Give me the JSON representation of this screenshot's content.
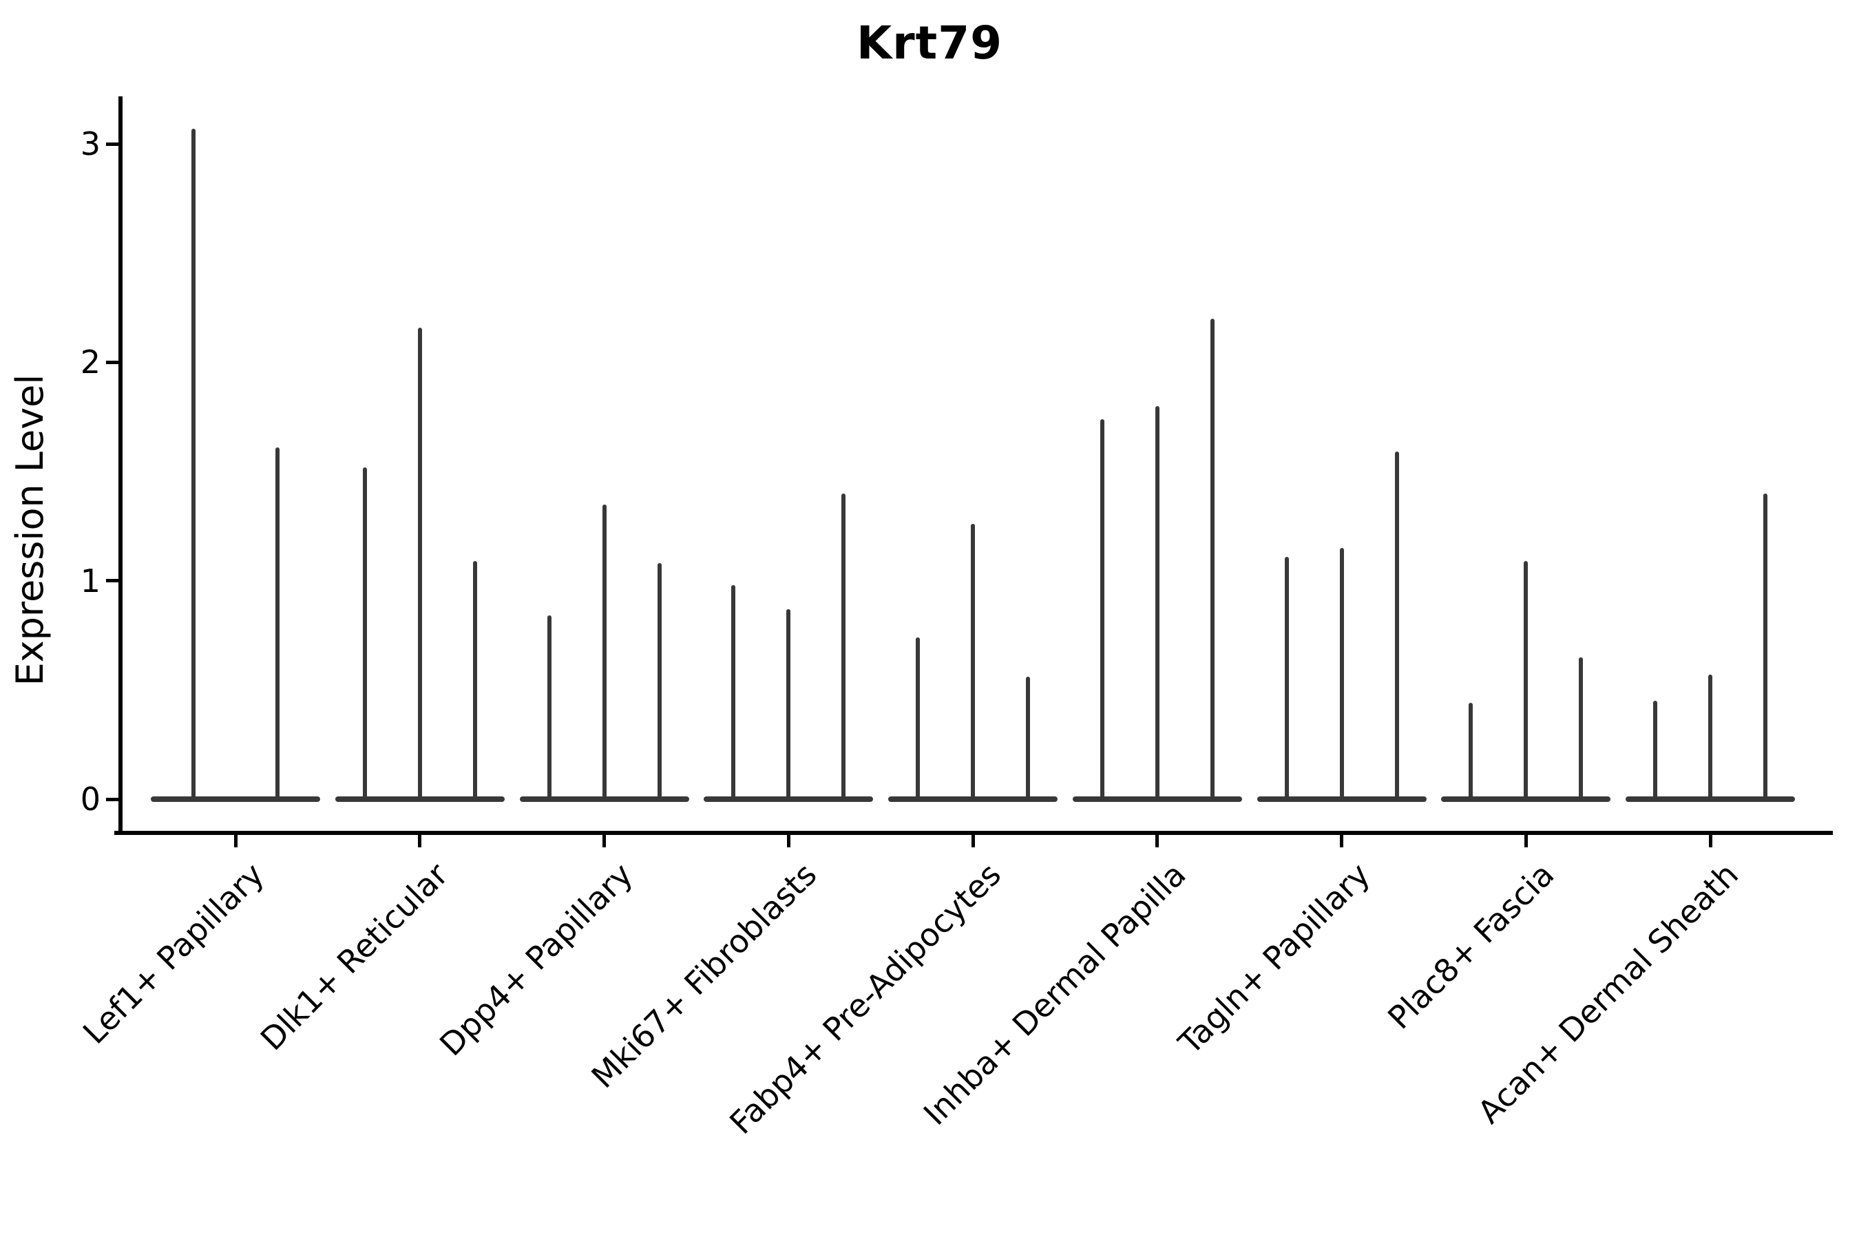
{
  "title": "Krt79",
  "ylabel": "Expression Level",
  "style": {
    "spike_color": "#383838",
    "axis_color": "#000000",
    "text_color": "#000000",
    "background": "#ffffff"
  },
  "chart_data": {
    "type": "violin",
    "title": "Krt79",
    "xlabel": "",
    "ylabel": "Expression Level",
    "ylim": [
      -0.16,
      3.3
    ],
    "yticks": [
      0,
      1,
      2,
      3
    ],
    "grid": false,
    "legend": "none",
    "x_tick_rotation": -45,
    "layout_note": "9 cell-type categories; each contains 2-3 extremely thin violins (most cells at 0 giving a flat dark base bar) with a single narrow spike rising to the maximum expression value",
    "categories": [
      "Lef1+ Papillary",
      "Dlk1+ Reticular",
      "Dpp4+ Papillary",
      "Mki67+ Fibroblasts",
      "Fabp4+ Pre-Adipocytes",
      "Inhba+ Dermal Papilla",
      "Tagln+ Papillary",
      "Plac8+ Fascia",
      "Acan+ Dermal Sheath"
    ],
    "groups": [
      {
        "category": "Lef1+ Papillary",
        "violin_max_expression": [
          3.07,
          1.61
        ]
      },
      {
        "category": "Dlk1+ Reticular",
        "violin_max_expression": [
          1.52,
          2.16,
          1.09
        ]
      },
      {
        "category": "Dpp4+ Papillary",
        "violin_max_expression": [
          0.84,
          1.35,
          1.08
        ]
      },
      {
        "category": "Mki67+ Fibroblasts",
        "violin_max_expression": [
          0.98,
          0.87,
          1.4
        ]
      },
      {
        "category": "Fabp4+ Pre-Adipocytes",
        "violin_max_expression": [
          0.74,
          1.26,
          0.56
        ]
      },
      {
        "category": "Inhba+ Dermal Papilla",
        "violin_max_expression": [
          1.74,
          1.8,
          2.2
        ]
      },
      {
        "category": "Tagln+ Papillary",
        "violin_max_expression": [
          1.11,
          1.15,
          1.59
        ]
      },
      {
        "category": "Plac8+ Fascia",
        "violin_max_expression": [
          0.44,
          1.09,
          0.65
        ]
      },
      {
        "category": "Acan+ Dermal Sheath",
        "violin_max_expression": [
          0.45,
          0.57,
          1.4
        ]
      }
    ]
  }
}
